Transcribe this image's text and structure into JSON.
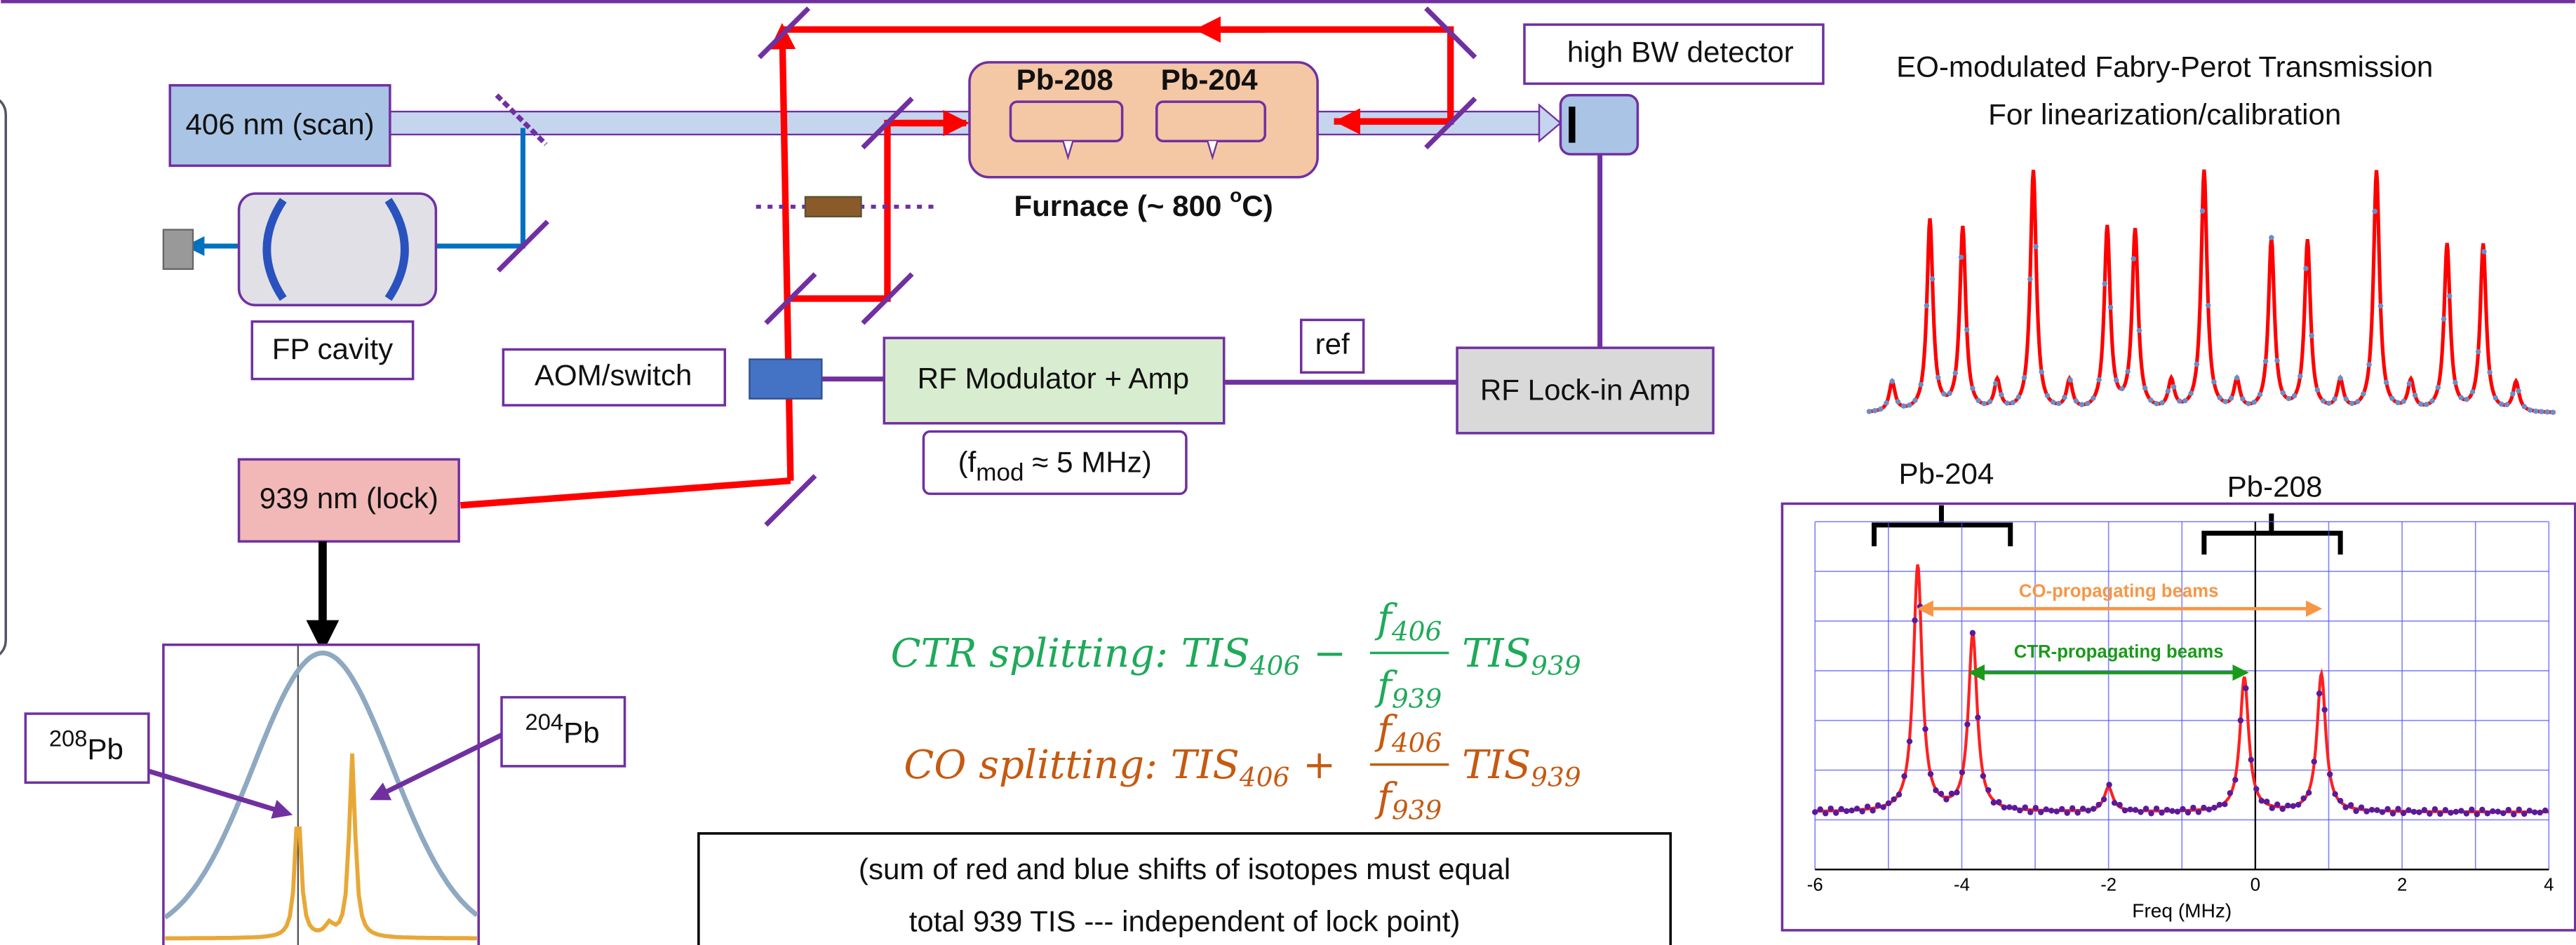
{
  "components": {
    "laser_scan": "406 nm (scan)",
    "fp_cavity": "FP cavity",
    "aom": "AOM/switch",
    "rf_modulator": "RF Modulator + Amp",
    "fmod": {
      "open": "(f",
      "sub": "mod",
      "rest": " ≈ 5 MHz)"
    },
    "ref": "ref",
    "lockin": "RF Lock-in Amp",
    "detector": "high BW detector",
    "cell_a": "Pb-208",
    "cell_b": "Pb-204",
    "furnace": {
      "text": "Furnace (~ 800 ",
      "sup": "o",
      "rest": "C)"
    },
    "laser_lock": "939 nm (lock)",
    "iso_a": {
      "sup": "208",
      "text": "Pb"
    },
    "iso_b": {
      "sup": "204",
      "text": "Pb"
    }
  },
  "fp_trace": {
    "title": "EO-modulated Fabry-Perot Transmission",
    "subtitle": "For linearization/calibration"
  },
  "spectrum": {
    "label_a": "Pb-204",
    "label_b": "Pb-208",
    "co_label": "CO-propagating beams",
    "ctr_label": "CTR-propagating beams",
    "xlabel": "Freq (MHz)",
    "xlim": [
      -6,
      4
    ],
    "xticks": [
      -6,
      -4,
      -2,
      0,
      2,
      4
    ]
  },
  "equations": [
    {
      "label": "CTR splitting:",
      "term1": "TIS",
      "sub1": "406",
      "op": "−",
      "num": "f",
      "num_sub": "406",
      "den": "f",
      "den_sub": "939",
      "term2": "TIS",
      "sub2": "939"
    },
    {
      "label": "CO splitting:",
      "term1": "TIS",
      "sub1": "406",
      "op": "+",
      "num": "f",
      "num_sub": "406",
      "den": "f",
      "den_sub": "939",
      "term2": "TIS",
      "sub2": "939"
    }
  ],
  "note": [
    "(sum of red and blue shifts of isotopes must equal",
    "total 939 TIS --- independent of lock point)"
  ]
}
